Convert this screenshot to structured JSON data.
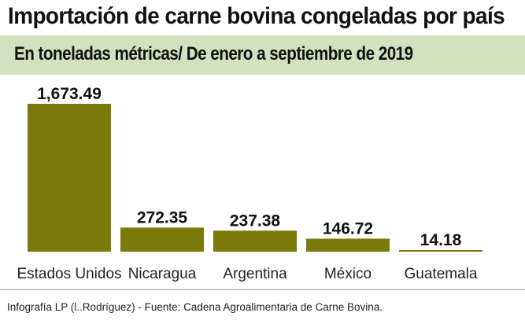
{
  "title": "Importación de carne bovina congeladas por país",
  "subtitle": "En toneladas métricas/ De enero a septiembre de 2019",
  "source": "Infografía LP (l..Rodríguez) - Fuente:  Cadena Agroalimentaria de Carne Bovina.",
  "colors": {
    "bar": "#7a7a0a",
    "subtitle_band": "#d4e1bf"
  },
  "chart_data": {
    "type": "bar",
    "categories": [
      "Estados Unidos",
      "Nicaragua",
      "Argentina",
      "México",
      "Guatemala"
    ],
    "values": [
      1673.49,
      272.35,
      237.38,
      146.72,
      14.18
    ],
    "value_labels": [
      "1,673.49",
      "272.35",
      "237.38",
      "146.72",
      "14.18"
    ],
    "title": "Importación de carne bovina congeladas por país",
    "subtitle": "En toneladas métricas/ De enero a septiembre de 2019",
    "grid": false,
    "legend": "none"
  }
}
